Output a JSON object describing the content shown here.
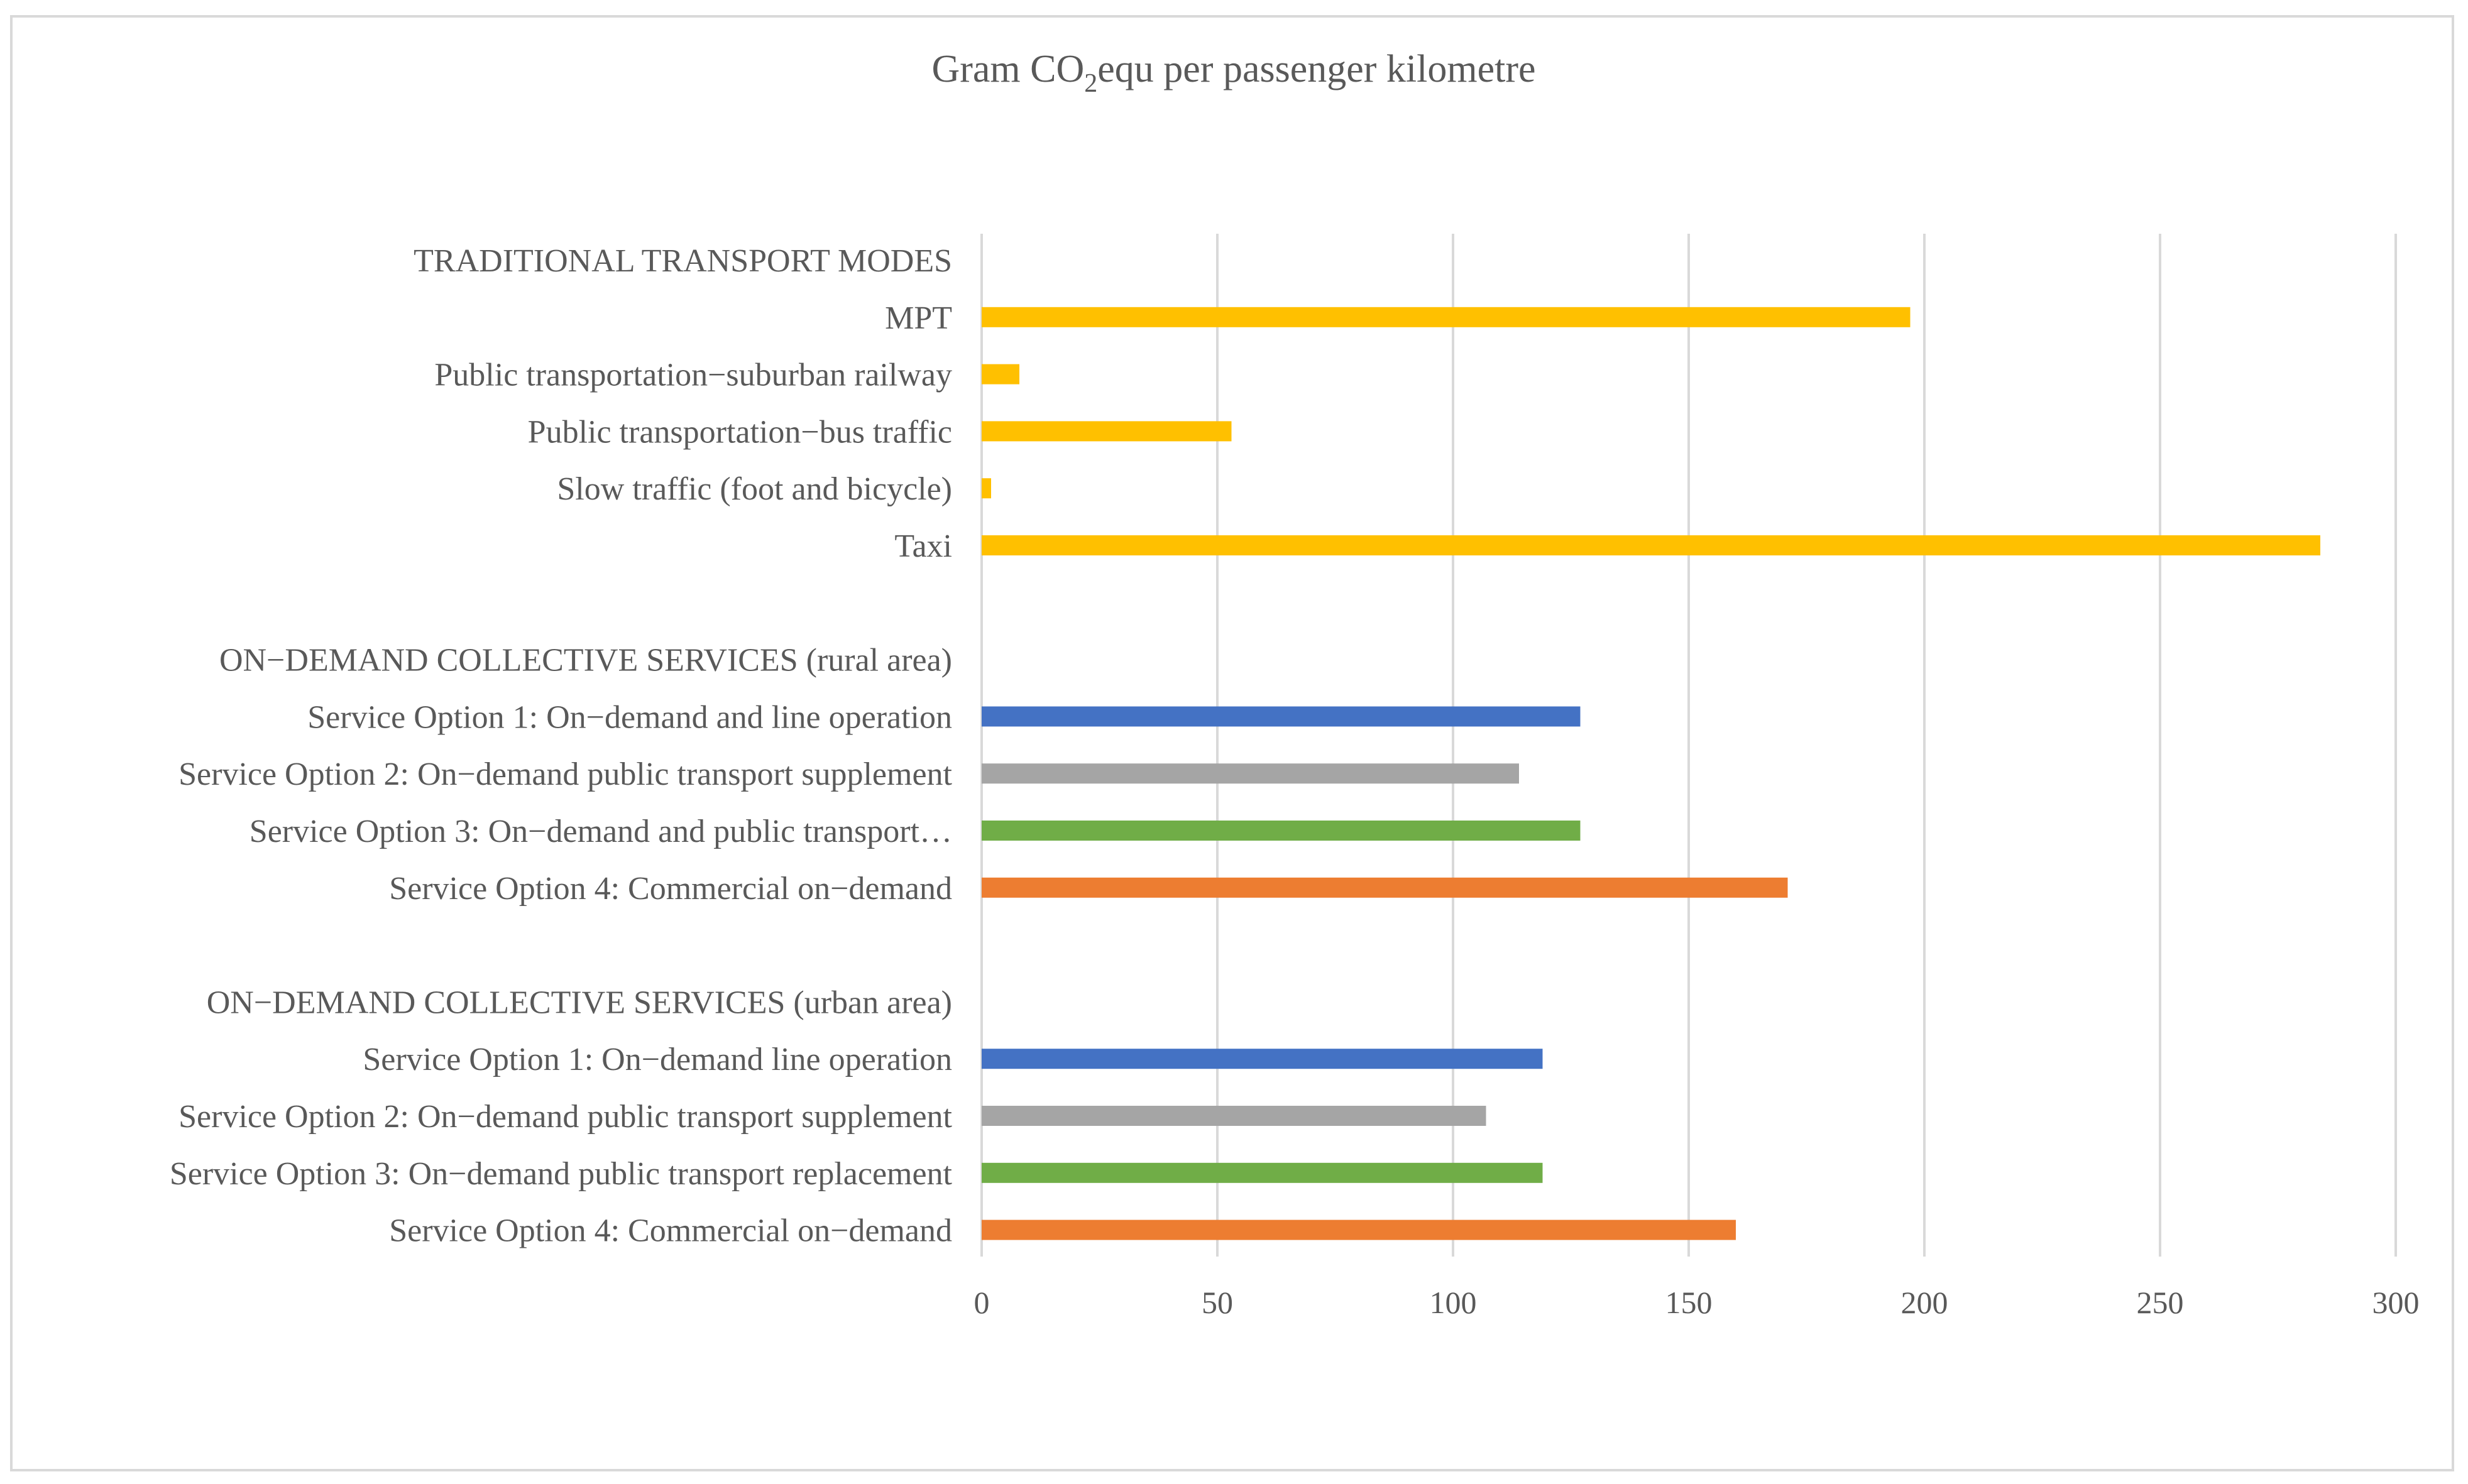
{
  "chart_data": {
    "type": "bar",
    "orientation": "horizontal",
    "title": {
      "prefix": "Gram CO",
      "subscript": "2",
      "suffix": "equ  per passenger kilometre"
    },
    "xlabel": "",
    "ylabel": "",
    "xlim": [
      0,
      300
    ],
    "ticks": [
      "0",
      "50",
      "100",
      "150",
      "200",
      "250",
      "300"
    ],
    "tick_values": [
      0,
      50,
      100,
      150,
      200,
      250,
      300
    ],
    "grid": true,
    "legend": "none",
    "colors": {
      "traditional": "#FFC000",
      "option1": "#4472C4",
      "option2": "#A5A5A5",
      "option3": "#70AD47",
      "option4": "#ED7D31",
      "grid": "#d9d9d9",
      "text": "#595959"
    },
    "categories": [
      "TRADITIONAL  TRANSPORT MODES",
      "MPT",
      "Public transportation−suburban railway",
      "Public transportation−bus traffic",
      "Slow traffic (foot and bicycle)",
      "Taxi",
      "",
      "ON−DEMAND  COLLECTIVE  SERVICES  (rural area)",
      "Service Option 1: On−demand and line operation",
      "Service Option 2: On−demand public transport supplement",
      "Service Option 3: On−demand and public transport…",
      "Service Option 4: Commercial on−demand",
      "",
      "ON−DEMAND  COLLECTIVE  SERVICES  (urban area)",
      "Service Option 1: On−demand line operation",
      "Service Option 2: On−demand public transport supplement",
      "Service Option 3: On−demand public transport replacement",
      "Service Option 4: Commercial on−demand"
    ],
    "values": [
      null,
      197,
      8,
      53,
      2,
      284,
      null,
      null,
      127,
      114,
      127,
      171,
      null,
      null,
      119,
      107,
      119,
      160
    ],
    "bar_colors": [
      "",
      "#FFC000",
      "#FFC000",
      "#FFC000",
      "#FFC000",
      "#FFC000",
      "",
      "",
      "#4472C4",
      "#A5A5A5",
      "#70AD47",
      "#ED7D31",
      "",
      "",
      "#4472C4",
      "#A5A5A5",
      "#70AD47",
      "#ED7D31"
    ]
  }
}
